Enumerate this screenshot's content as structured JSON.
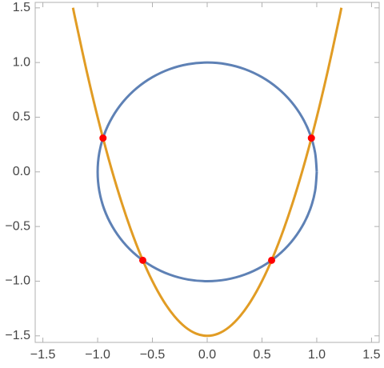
{
  "chart_data": {
    "type": "line",
    "xlim": [
      -1.57,
      1.57
    ],
    "ylim": [
      -1.56,
      1.55
    ],
    "xticks": [
      {
        "value": -1.5,
        "label": "−1.5"
      },
      {
        "value": -1,
        "label": "−1.0"
      },
      {
        "value": -0.5,
        "label": "−0.5"
      },
      {
        "value": 0,
        "label": "0.0"
      },
      0.5,
      {
        "value": 1,
        "label": "1.0"
      },
      1.5
    ],
    "yticks": [
      {
        "value": -1.5,
        "label": "−1.5"
      },
      {
        "value": -1,
        "label": "−1.0"
      },
      {
        "value": -0.5,
        "label": "−0.5"
      },
      {
        "value": 0,
        "label": "0.0"
      },
      0.5,
      {
        "value": 1,
        "label": "1.0"
      },
      1.5
    ],
    "series": [
      {
        "color": "#5e81b5",
        "smooth": true,
        "x": [
          1,
          0.985,
          0.94,
          0.866,
          0.766,
          0.643,
          0.5,
          0.342,
          0.174,
          0,
          -0.174,
          -0.342,
          -0.5,
          -0.643,
          -0.766,
          -0.866,
          -0.94,
          -0.985,
          -1,
          -0.985,
          -0.94,
          -0.866,
          -0.766,
          -0.643,
          -0.5,
          -0.342,
          -0.174,
          0,
          0.174,
          0.342,
          0.5,
          0.643,
          0.766,
          0.866,
          0.94,
          0.985,
          1
        ],
        "values": [
          0,
          0.174,
          0.342,
          0.5,
          0.643,
          0.766,
          0.866,
          0.94,
          0.985,
          1,
          0.985,
          0.94,
          0.866,
          0.766,
          0.643,
          0.5,
          0.342,
          0.174,
          0,
          -0.174,
          -0.342,
          -0.5,
          -0.643,
          -0.766,
          -0.866,
          -0.94,
          -0.985,
          -1,
          -0.985,
          -0.94,
          -0.866,
          -0.766,
          -0.643,
          -0.5,
          -0.342,
          -0.174,
          0
        ]
      },
      {
        "color": "#e19c24",
        "smooth": true,
        "x": [
          -1.225,
          -1.2,
          -1.1,
          -1,
          -0.9,
          -0.8,
          -0.7,
          -0.6,
          -0.5,
          -0.4,
          -0.3,
          -0.2,
          -0.1,
          0,
          0.1,
          0.2,
          0.3,
          0.4,
          0.5,
          0.6,
          0.7,
          0.8,
          0.9,
          1,
          1.1,
          1.2,
          1.225
        ],
        "values": [
          1.501,
          1.38,
          0.92,
          0.5,
          0.12,
          -0.22,
          -0.52,
          -0.78,
          -1,
          -1.18,
          -1.32,
          -1.42,
          -1.48,
          -1.5,
          -1.48,
          -1.42,
          -1.32,
          -1.18,
          -1,
          -0.78,
          -0.52,
          -0.22,
          0.12,
          0.5,
          0.92,
          1.38,
          1.501
        ]
      },
      {
        "color": "#ff0000",
        "markers": true,
        "x": [
          -0.951,
          0.951,
          -0.588,
          0.588
        ],
        "values": [
          0.309,
          0.309,
          -0.809,
          -0.809
        ]
      }
    ]
  }
}
